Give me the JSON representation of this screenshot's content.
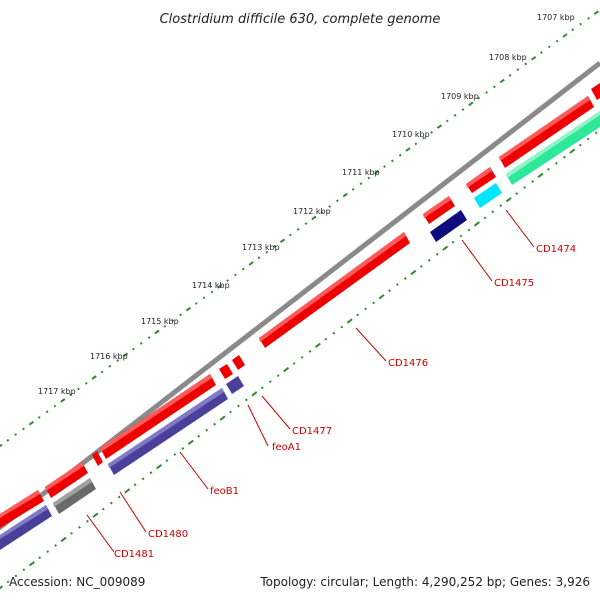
{
  "title": "Clostridium difficile 630, complete genome",
  "footer": {
    "accession": "Accession: NC_009089",
    "summary": "Topology: circular; Length: 4,290,252 bp; Genes: 3,926"
  },
  "colors": {
    "backbone": "#8a8a8a",
    "forward_gene": "#ee0000",
    "reverse_gene": "#4a3f99",
    "label": "#cc0000",
    "tick": "#2e8b2e",
    "cyan_feature": "#00e5ff",
    "teal_feature": "#2ee89a",
    "navy_feature": "#0d0d80",
    "grey_feature": "#6a6a6a"
  },
  "scale_labels": [
    "1707 kbp",
    "1708 kbp",
    "1709 kbp",
    "1710 kbp",
    "1711 kbp",
    "1712 kbp",
    "1713 kbp",
    "1714 kbp",
    "1715 kbp",
    "1716 kbp",
    "1717 kbp"
  ],
  "gene_labels": [
    "CD1474",
    "CD1475",
    "CD1476",
    "CD1477",
    "feoA1",
    "feoB1",
    "CD1480",
    "CD1481"
  ]
}
